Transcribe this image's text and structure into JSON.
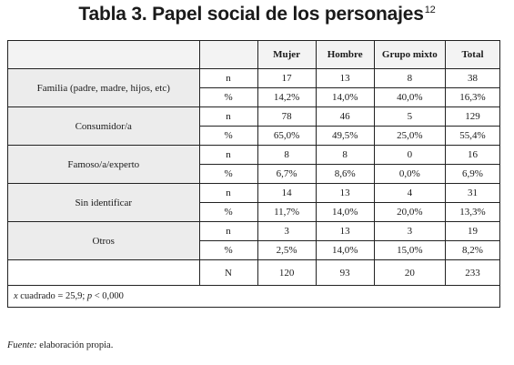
{
  "title": {
    "text": "Tabla 3. Papel social de los personajes",
    "footnote_mark": "12"
  },
  "table": {
    "headers": [
      "Mujer",
      "Hombre",
      "Grupo mixto",
      "Total"
    ],
    "groups": [
      {
        "label": "Familia (padre, madre, hijos, etc)",
        "rows": [
          {
            "sym": "n",
            "values": [
              "17",
              "13",
              "8",
              "38"
            ]
          },
          {
            "sym": "%",
            "values": [
              "14,2%",
              "14,0%",
              "40,0%",
              "16,3%"
            ]
          }
        ]
      },
      {
        "label": "Consumidor/a",
        "rows": [
          {
            "sym": "n",
            "values": [
              "78",
              "46",
              "5",
              "129"
            ]
          },
          {
            "sym": "%",
            "values": [
              "65,0%",
              "49,5%",
              "25,0%",
              "55,4%"
            ]
          }
        ]
      },
      {
        "label": "Famoso/a/experto",
        "rows": [
          {
            "sym": "n",
            "values": [
              "8",
              "8",
              "0",
              "16"
            ]
          },
          {
            "sym": "%",
            "values": [
              "6,7%",
              "8,6%",
              "0,0%",
              "6,9%"
            ]
          }
        ]
      },
      {
        "label": "Sin identificar",
        "rows": [
          {
            "sym": "n",
            "values": [
              "14",
              "13",
              "4",
              "31"
            ]
          },
          {
            "sym": "%",
            "values": [
              "11,7%",
              "14,0%",
              "20,0%",
              "13,3%"
            ]
          }
        ]
      },
      {
        "label": "Otros",
        "rows": [
          {
            "sym": "n",
            "values": [
              "3",
              "13",
              "3",
              "19"
            ]
          },
          {
            "sym": "%",
            "values": [
              "2,5%",
              "14,0%",
              "15,0%",
              "8,2%"
            ]
          }
        ]
      }
    ],
    "total_row": {
      "sym": "N",
      "values": [
        "120",
        "93",
        "20",
        "233"
      ]
    },
    "stat": {
      "x": "x",
      "rest1": " cuadrado = 25,9; ",
      "p": "p",
      "rest2": " < 0,000"
    }
  },
  "source": {
    "label": "Fuente:",
    "text": " elaboración propia."
  }
}
